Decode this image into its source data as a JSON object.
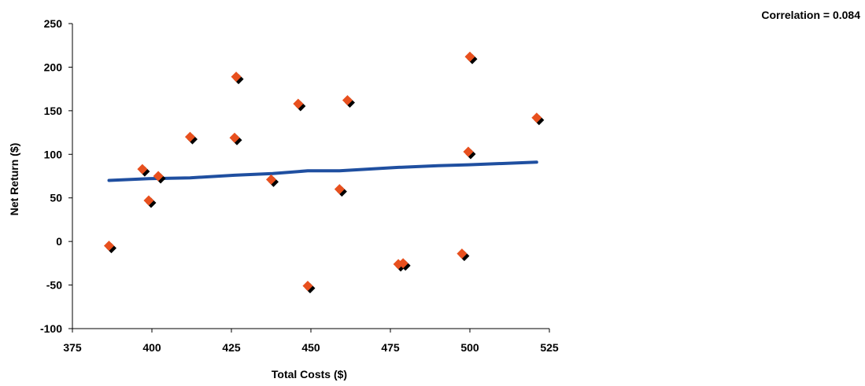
{
  "chart_data": {
    "type": "scatter",
    "title": "",
    "xlabel": "Total Costs ($)",
    "ylabel": "Net Return ($)",
    "annotation": "Correlation = 0.084",
    "xlim": [
      375,
      525
    ],
    "ylim": [
      -100,
      250
    ],
    "xticks": [
      375,
      400,
      425,
      450,
      475,
      500,
      525
    ],
    "yticks": [
      -100,
      -50,
      0,
      50,
      100,
      150,
      200,
      250
    ],
    "xtick_labels": [
      "375",
      "400",
      "425",
      "450",
      "475",
      "500",
      "525"
    ],
    "ytick_labels": [
      "-100",
      "-50",
      "0",
      "50",
      "100",
      "150",
      "200",
      "250"
    ],
    "grid": false,
    "legend": "none",
    "marker_color": "#e8501e",
    "shadow_color": "#000000",
    "line_color": "#1f4fa0",
    "points": [
      {
        "x": 386.5,
        "y": -5
      },
      {
        "x": 397,
        "y": 83
      },
      {
        "x": 399,
        "y": 47
      },
      {
        "x": 402,
        "y": 75
      },
      {
        "x": 412,
        "y": 120
      },
      {
        "x": 426,
        "y": 119
      },
      {
        "x": 426.5,
        "y": 189
      },
      {
        "x": 437.5,
        "y": 71
      },
      {
        "x": 446,
        "y": 158
      },
      {
        "x": 449,
        "y": -51
      },
      {
        "x": 459,
        "y": 60
      },
      {
        "x": 461.5,
        "y": 162
      },
      {
        "x": 477.5,
        "y": -26
      },
      {
        "x": 479,
        "y": -25
      },
      {
        "x": 497.5,
        "y": -14
      },
      {
        "x": 499.5,
        "y": 103
      },
      {
        "x": 500,
        "y": 212
      },
      {
        "x": 521,
        "y": 142
      }
    ],
    "trend_line": [
      {
        "x": 386.5,
        "y": 70
      },
      {
        "x": 399,
        "y": 72
      },
      {
        "x": 412,
        "y": 73
      },
      {
        "x": 426,
        "y": 76
      },
      {
        "x": 438,
        "y": 78
      },
      {
        "x": 449,
        "y": 81
      },
      {
        "x": 459,
        "y": 81
      },
      {
        "x": 477.5,
        "y": 85
      },
      {
        "x": 490,
        "y": 87
      },
      {
        "x": 499.5,
        "y": 88
      },
      {
        "x": 521,
        "y": 91
      }
    ]
  }
}
